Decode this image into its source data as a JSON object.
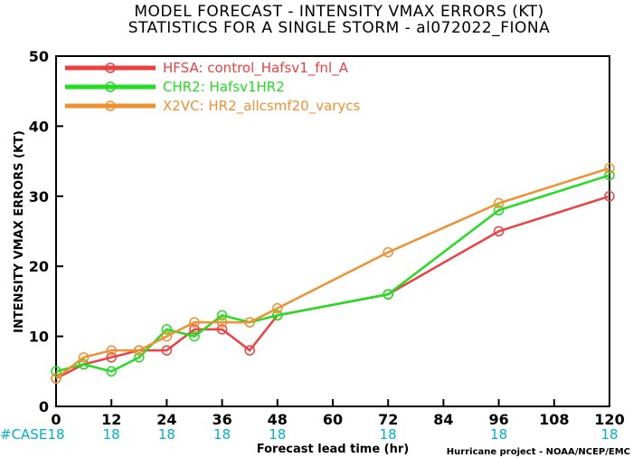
{
  "title_line1": "MODEL FORECAST - INTENSITY VMAX ERRORS (KT)",
  "title_line2": "STATISTICS FOR A SINGLE STORM - al072022_FIONA",
  "credit": "Hurricane project - NOAA/NCEP/EMC",
  "case_label": "#CASE",
  "chart_data": {
    "type": "line",
    "xlabel": "Forecast lead time (hr)",
    "ylabel": "INTENSITY VMAX ERRORS (KT)",
    "xlim": [
      0,
      120
    ],
    "ylim": [
      0,
      50
    ],
    "x_ticks": [
      0,
      12,
      24,
      36,
      48,
      60,
      72,
      84,
      96,
      108,
      120
    ],
    "y_ticks": [
      0,
      10,
      20,
      30,
      40,
      50
    ],
    "legend_position": "top-left",
    "series": [
      {
        "name": "HFSA: control_Hafsv1_fnl_A",
        "color": "#ee4040",
        "x": [
          0,
          6,
          12,
          18,
          24,
          30,
          36,
          42,
          48,
          72,
          96,
          120
        ],
        "y": [
          4,
          6,
          7,
          8,
          8,
          11,
          11,
          8,
          13,
          16,
          25,
          30
        ]
      },
      {
        "name": "CHR2: Hafsv1HR2",
        "color": "#22dd22",
        "x": [
          0,
          6,
          12,
          18,
          24,
          30,
          36,
          42,
          48,
          72,
          96,
          120
        ],
        "y": [
          5,
          6,
          5,
          7,
          11,
          10,
          13,
          12,
          13,
          16,
          28,
          33
        ]
      },
      {
        "name": "X2VC: HR2_allcsmf20_varycs",
        "color": "#f09030",
        "x": [
          0,
          6,
          12,
          18,
          24,
          30,
          36,
          42,
          48,
          72,
          96,
          120
        ],
        "y": [
          4,
          7,
          8,
          8,
          10,
          12,
          12,
          12,
          14,
          22,
          29,
          34
        ]
      }
    ],
    "cases": {
      "x": [
        0,
        12,
        24,
        36,
        48,
        72,
        96,
        120
      ],
      "values": [
        "18",
        "18",
        "18",
        "18",
        "18",
        "18",
        "18",
        "18"
      ]
    }
  }
}
